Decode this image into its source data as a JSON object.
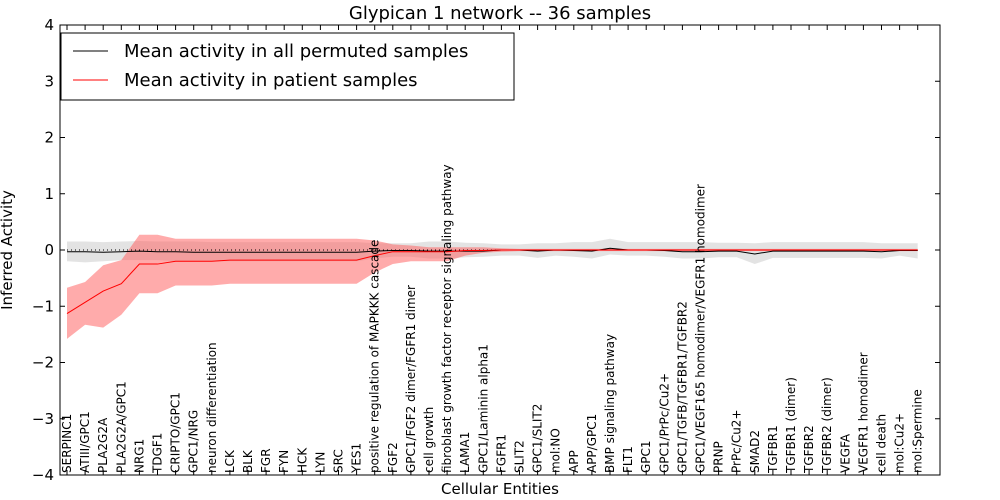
{
  "chart_data": {
    "type": "line",
    "title": "Glypican 1 network -- 36 samples",
    "xlabel": "Cellular Entities",
    "ylabel": "Inferred Activity",
    "ylim": [
      -4,
      4
    ],
    "yticks": [
      -4,
      -3,
      -2,
      -1,
      0,
      1,
      2,
      3,
      4
    ],
    "grid": false,
    "legend_position": "top-left",
    "categories": [
      "SERPINC1",
      "ATIII/GPC1",
      "PLA2G2A",
      "PLA2G2A/GPC1",
      "NRG1",
      "TDGF1",
      "CRIPTO/GPC1",
      "GPC1/NRG",
      "neuron differentiation",
      "LCK",
      "BLK",
      "FGR",
      "FYN",
      "HCK",
      "LYN",
      "SRC",
      "YES1",
      "positive regulation of MAPKKK cascade",
      "FGF2",
      "GPC1/FGF2 dimer/FGFR1 dimer",
      "cell growth",
      "fibroblast growth factor receptor signaling pathway",
      "LAMA1",
      "GPC1/Laminin alpha1",
      "FGFR1",
      "SLIT2",
      "GPC1/SLIT2",
      "mol:NO",
      "APP",
      "APP/GPC1",
      "BMP signaling pathway",
      "FLT1",
      "GPC1",
      "GPC1/PrPc/Cu2+",
      "GPC1/TGFB/TGFBR1/TGFBR2",
      "GPC1/VEGF165 homodimer/VEGFR1 homodimer",
      "PRNP",
      "PrPc/Cu2+",
      "SMAD2",
      "TGFBR1",
      "TGFBR1 (dimer)",
      "TGFBR2",
      "TGFBR2 (dimer)",
      "VEGFA",
      "VEGFR1 homodimer",
      "cell death",
      "mol:Cu2+",
      "mol:Spermine"
    ],
    "series": [
      {
        "name": "Mean activity in all permuted samples",
        "color": "#000000",
        "values": [
          -0.03,
          -0.03,
          -0.04,
          -0.03,
          -0.02,
          -0.03,
          -0.03,
          -0.04,
          -0.04,
          -0.04,
          -0.04,
          -0.04,
          -0.04,
          -0.04,
          -0.04,
          -0.04,
          -0.04,
          -0.02,
          -0.01,
          -0.01,
          -0.02,
          -0.02,
          -0.02,
          -0.02,
          0.0,
          0.0,
          -0.02,
          0.0,
          -0.01,
          -0.02,
          0.03,
          0.0,
          0.0,
          -0.01,
          -0.03,
          -0.03,
          -0.02,
          -0.02,
          -0.07,
          -0.02,
          -0.02,
          -0.02,
          -0.02,
          -0.02,
          -0.02,
          -0.03,
          -0.01,
          -0.01
        ],
        "band": [
          [
            -0.2,
            0.15
          ],
          [
            -0.22,
            0.15
          ],
          [
            -0.2,
            0.14
          ],
          [
            -0.18,
            0.15
          ],
          [
            -0.18,
            0.16
          ],
          [
            -0.18,
            0.15
          ],
          [
            -0.2,
            0.15
          ],
          [
            -0.2,
            0.15
          ],
          [
            -0.2,
            0.14
          ],
          [
            -0.2,
            0.14
          ],
          [
            -0.2,
            0.14
          ],
          [
            -0.2,
            0.14
          ],
          [
            -0.2,
            0.14
          ],
          [
            -0.2,
            0.14
          ],
          [
            -0.2,
            0.14
          ],
          [
            -0.2,
            0.14
          ],
          [
            -0.2,
            0.14
          ],
          [
            -0.15,
            0.12
          ],
          [
            -0.12,
            0.12
          ],
          [
            -0.12,
            0.12
          ],
          [
            -0.15,
            0.15
          ],
          [
            -0.15,
            0.15
          ],
          [
            -0.13,
            0.13
          ],
          [
            -0.12,
            0.12
          ],
          [
            -0.1,
            0.1
          ],
          [
            -0.1,
            0.1
          ],
          [
            -0.14,
            0.12
          ],
          [
            -0.1,
            0.12
          ],
          [
            -0.12,
            0.14
          ],
          [
            -0.15,
            0.14
          ],
          [
            -0.08,
            0.2
          ],
          [
            -0.1,
            0.14
          ],
          [
            -0.1,
            0.14
          ],
          [
            -0.12,
            0.14
          ],
          [
            -0.15,
            0.14
          ],
          [
            -0.15,
            0.14
          ],
          [
            -0.13,
            0.13
          ],
          [
            -0.13,
            0.13
          ],
          [
            -0.25,
            0.12
          ],
          [
            -0.14,
            0.14
          ],
          [
            -0.14,
            0.14
          ],
          [
            -0.14,
            0.14
          ],
          [
            -0.14,
            0.14
          ],
          [
            -0.14,
            0.14
          ],
          [
            -0.14,
            0.14
          ],
          [
            -0.15,
            0.12
          ],
          [
            -0.1,
            0.12
          ],
          [
            -0.15,
            0.12
          ]
        ]
      },
      {
        "name": "Mean activity in patient samples",
        "color": "#ff0000",
        "values": [
          -1.13,
          -0.93,
          -0.73,
          -0.6,
          -0.25,
          -0.25,
          -0.2,
          -0.2,
          -0.2,
          -0.18,
          -0.18,
          -0.18,
          -0.18,
          -0.18,
          -0.18,
          -0.18,
          -0.18,
          -0.1,
          -0.03,
          -0.03,
          -0.03,
          -0.03,
          -0.01,
          -0.01,
          0.0,
          0.0,
          0.0,
          0.0,
          0.0,
          0.0,
          0.0,
          0.0,
          0.0,
          0.0,
          0.0,
          0.0,
          0.0,
          0.0,
          0.0,
          0.0,
          0.0,
          0.0,
          0.0,
          0.0,
          0.0,
          0.0,
          0.0,
          0.0
        ],
        "band": [
          [
            -1.58,
            -0.67
          ],
          [
            -1.33,
            -0.57
          ],
          [
            -1.38,
            -0.27
          ],
          [
            -1.15,
            -0.18
          ],
          [
            -0.77,
            0.27
          ],
          [
            -0.77,
            0.27
          ],
          [
            -0.63,
            0.2
          ],
          [
            -0.63,
            0.2
          ],
          [
            -0.63,
            0.2
          ],
          [
            -0.6,
            0.2
          ],
          [
            -0.6,
            0.2
          ],
          [
            -0.6,
            0.2
          ],
          [
            -0.6,
            0.2
          ],
          [
            -0.6,
            0.2
          ],
          [
            -0.6,
            0.2
          ],
          [
            -0.6,
            0.2
          ],
          [
            -0.6,
            0.2
          ],
          [
            -0.4,
            0.17
          ],
          [
            -0.25,
            0.1
          ],
          [
            -0.2,
            0.08
          ],
          [
            -0.2,
            0.05
          ],
          [
            -0.2,
            0.05
          ],
          [
            -0.1,
            0.05
          ],
          [
            -0.05,
            0.05
          ],
          [
            -0.03,
            0.03
          ],
          [
            -0.02,
            0.02
          ],
          [
            -0.02,
            0.02
          ],
          [
            -0.02,
            0.02
          ],
          [
            -0.02,
            0.02
          ],
          [
            -0.02,
            0.02
          ],
          [
            -0.02,
            0.02
          ],
          [
            -0.02,
            0.02
          ],
          [
            -0.02,
            0.02
          ],
          [
            -0.02,
            0.02
          ],
          [
            -0.02,
            0.02
          ],
          [
            -0.02,
            0.02
          ],
          [
            -0.02,
            0.02
          ],
          [
            -0.02,
            0.02
          ],
          [
            -0.02,
            0.02
          ],
          [
            -0.02,
            0.02
          ],
          [
            -0.02,
            0.02
          ],
          [
            -0.02,
            0.02
          ],
          [
            -0.02,
            0.02
          ],
          [
            -0.02,
            0.02
          ],
          [
            -0.02,
            0.02
          ],
          [
            -0.02,
            0.02
          ],
          [
            -0.02,
            0.02
          ],
          [
            -0.02,
            0.02
          ]
        ]
      }
    ],
    "reference_line": {
      "y": 0,
      "style": "dotted"
    }
  }
}
